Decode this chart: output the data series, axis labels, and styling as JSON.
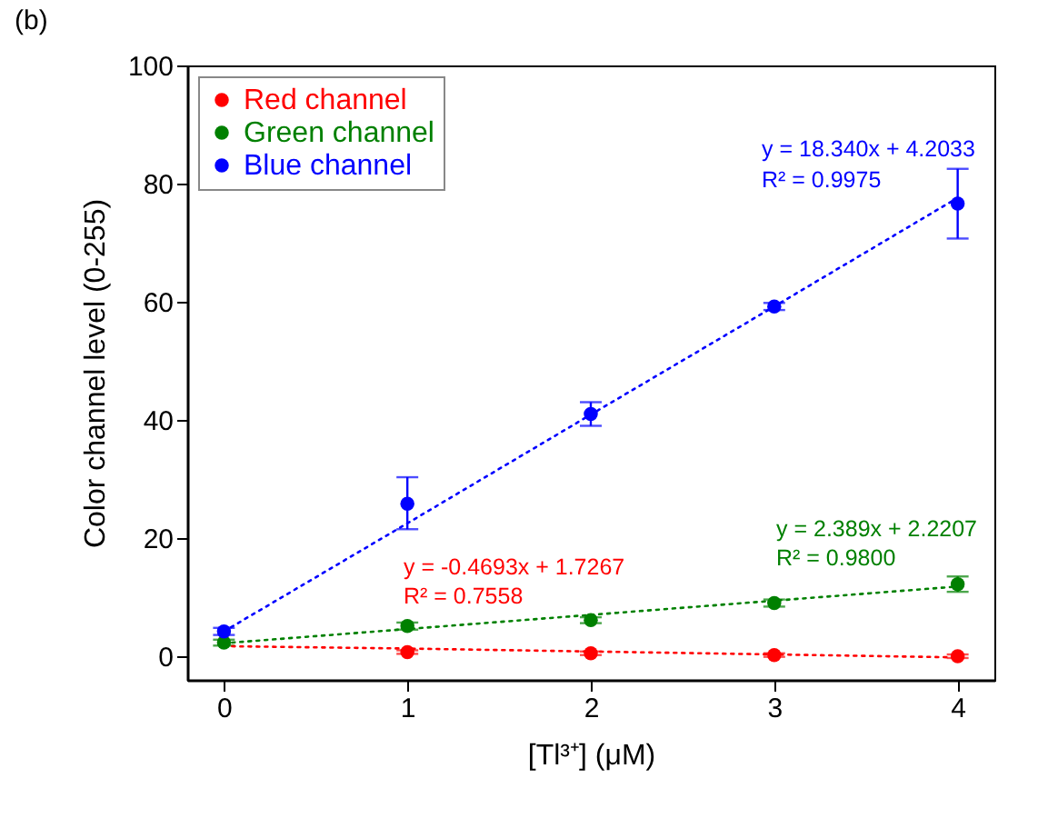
{
  "chart_data": {
    "type": "scatter",
    "title": "(b)",
    "xlabel": "[Tl³⁺] (μM)",
    "ylabel": "Color channel level (0-255)",
    "x": [
      0,
      1,
      2,
      3,
      4
    ],
    "xlim": [
      -0.2,
      4.2
    ],
    "xticks": [
      0,
      1,
      2,
      3,
      4
    ],
    "ylim": [
      -4,
      100
    ],
    "yticks": [
      0,
      20,
      40,
      60,
      80,
      100
    ],
    "legend": "top left",
    "marker": "circle",
    "series": [
      {
        "name": "Red channel",
        "color": "#ff0000",
        "values": [
          null,
          0.7,
          0.5,
          0.2,
          0.0
        ],
        "errors": [
          null,
          0.3,
          0.3,
          0.3,
          0.3
        ]
      },
      {
        "name": "Green channel",
        "color": "#008000",
        "values": [
          2.3,
          5.1,
          6.1,
          9.0,
          12.2
        ],
        "errors": [
          0.5,
          0.6,
          0.5,
          0.6,
          1.3
        ]
      },
      {
        "name": "Blue channel",
        "color": "#0000ff",
        "values": [
          4.2,
          25.8,
          41.0,
          59.2,
          76.6
        ],
        "errors": [
          0.6,
          [
            21.5,
            30.3
          ],
          [
            39.0,
            43.0
          ],
          0.6,
          [
            70.7,
            82.5
          ]
        ]
      },
      {
        "type": "line",
        "color": "#ff0000",
        "line_style": "dotted",
        "marker": "none",
        "values": [
          1.7,
          1.3,
          0.8,
          0.3,
          -0.2
        ]
      },
      {
        "type": "line",
        "color": "#008000",
        "line_style": "dotted",
        "marker": "none",
        "values": [
          2.2,
          4.6,
          7.0,
          9.4,
          11.8
        ]
      },
      {
        "type": "line",
        "color": "#0000ff",
        "line_style": "dotted",
        "marker": "none",
        "values": [
          4.2,
          22.5,
          40.9,
          59.2,
          77.6
        ]
      }
    ],
    "annotations": [
      "y = -0.4693x + 1.7267",
      "R² = 0.7558",
      "y = 2.389x + 2.2207",
      "R² = 0.9800",
      "y = 18.340x + 4.2033",
      "R² = 0.9975"
    ]
  }
}
